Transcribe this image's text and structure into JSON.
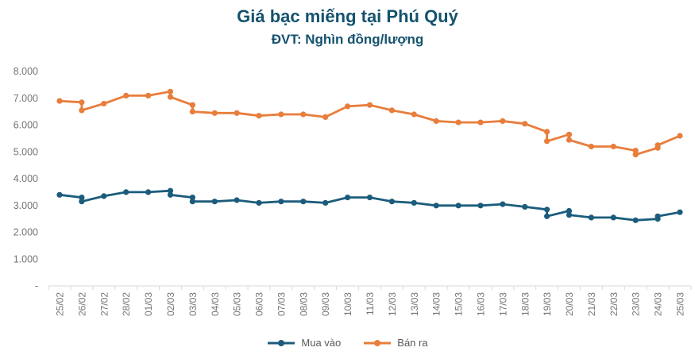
{
  "chart_data": {
    "type": "line",
    "title": "Giá bạc miếng tại Phú Quý",
    "subtitle": "ĐVT: Nghìn đồng/lượng",
    "categories": [
      "25/02",
      "26/02",
      "27/02",
      "28/02",
      "01/03",
      "02/03",
      "03/03",
      "04/03",
      "05/03",
      "06/03",
      "07/03",
      "08/03",
      "09/03",
      "10/03",
      "11/03",
      "12/03",
      "13/03",
      "14/03",
      "15/03",
      "16/03",
      "17/03",
      "18/03",
      "19/03",
      "20/03",
      "21/03",
      "22/03",
      "23/03",
      "24/03",
      "25/03"
    ],
    "y_axis": {
      "min": 0,
      "max": 8000,
      "step": 1000,
      "tick_labels": [
        "8.000",
        "7.000",
        "6.000",
        "5.000",
        "4.000",
        "3.000",
        "2.000",
        "1.000",
        "-"
      ]
    },
    "x_label_rotation": -90,
    "grid": false,
    "legend_position": "bottom",
    "series": [
      {
        "name": "Mua vào",
        "color": "#1B5C7C",
        "points": [
          [
            0,
            3400
          ],
          [
            1,
            3300
          ],
          [
            1,
            3150
          ],
          [
            2,
            3350
          ],
          [
            3,
            3500
          ],
          [
            4,
            3500
          ],
          [
            5,
            3550
          ],
          [
            5,
            3400
          ],
          [
            6,
            3300
          ],
          [
            6,
            3150
          ],
          [
            7,
            3150
          ],
          [
            8,
            3200
          ],
          [
            9,
            3100
          ],
          [
            10,
            3150
          ],
          [
            11,
            3150
          ],
          [
            12,
            3100
          ],
          [
            13,
            3300
          ],
          [
            14,
            3300
          ],
          [
            15,
            3150
          ],
          [
            16,
            3100
          ],
          [
            17,
            3000
          ],
          [
            18,
            3000
          ],
          [
            19,
            3000
          ],
          [
            20,
            3050
          ],
          [
            21,
            2950
          ],
          [
            22,
            2850
          ],
          [
            22,
            2600
          ],
          [
            23,
            2800
          ],
          [
            23,
            2650
          ],
          [
            24,
            2550
          ],
          [
            25,
            2550
          ],
          [
            26,
            2450
          ],
          [
            27,
            2500
          ],
          [
            27,
            2600
          ],
          [
            28,
            2750
          ]
        ]
      },
      {
        "name": "Bán ra",
        "color": "#E87D3C",
        "points": [
          [
            0,
            6900
          ],
          [
            1,
            6850
          ],
          [
            1,
            6550
          ],
          [
            2,
            6800
          ],
          [
            3,
            7100
          ],
          [
            4,
            7100
          ],
          [
            5,
            7250
          ],
          [
            5,
            7050
          ],
          [
            6,
            6750
          ],
          [
            6,
            6500
          ],
          [
            7,
            6450
          ],
          [
            8,
            6450
          ],
          [
            9,
            6350
          ],
          [
            10,
            6400
          ],
          [
            11,
            6400
          ],
          [
            12,
            6300
          ],
          [
            13,
            6700
          ],
          [
            14,
            6750
          ],
          [
            15,
            6550
          ],
          [
            16,
            6400
          ],
          [
            17,
            6150
          ],
          [
            18,
            6100
          ],
          [
            19,
            6100
          ],
          [
            20,
            6150
          ],
          [
            21,
            6050
          ],
          [
            22,
            5750
          ],
          [
            22,
            5400
          ],
          [
            23,
            5650
          ],
          [
            23,
            5450
          ],
          [
            24,
            5200
          ],
          [
            25,
            5200
          ],
          [
            26,
            5050
          ],
          [
            26,
            4900
          ],
          [
            27,
            5150
          ],
          [
            27,
            5250
          ],
          [
            28,
            5600
          ]
        ]
      }
    ],
    "colors": {
      "title": "#15526E",
      "axis_line": "#D9D9D9",
      "axis_tick_label": "#757575",
      "legend_text": "#595959"
    }
  }
}
